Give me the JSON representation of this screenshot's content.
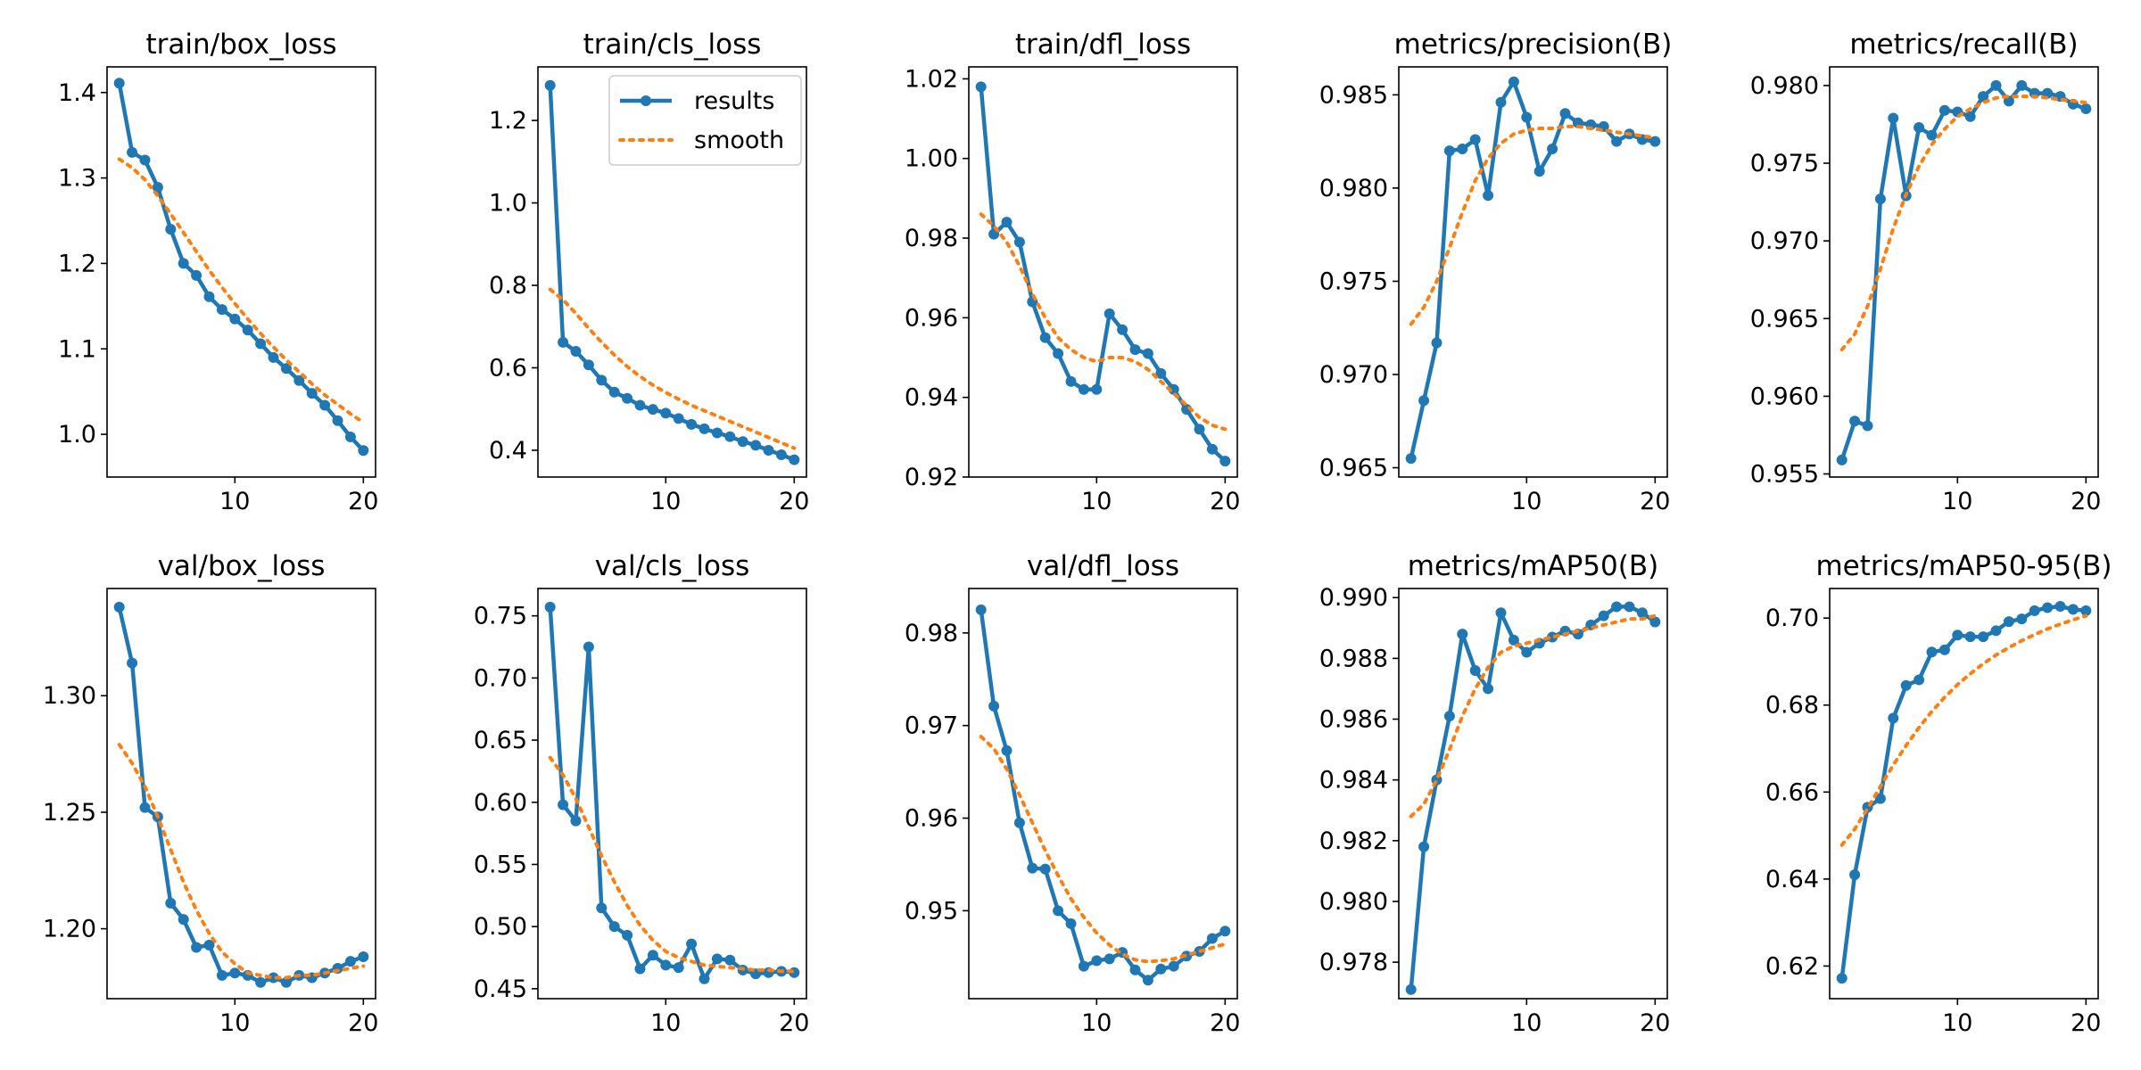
{
  "legend": {
    "results_label": "results",
    "smooth_label": "smooth"
  },
  "colors": {
    "results": "#1f77b4",
    "smooth": "#ff7f0e",
    "axes": "#000000"
  },
  "chart_data": [
    {
      "type": "line",
      "title": "train/box_loss",
      "xlim": [
        0.05,
        20.95
      ],
      "ylim": [
        0.95,
        1.43
      ],
      "xticks": [
        {
          "v": 10,
          "label": "10"
        },
        {
          "v": 20,
          "label": "20"
        }
      ],
      "yticks": [
        {
          "v": 1.0,
          "label": "1.0"
        },
        {
          "v": 1.1,
          "label": "1.1"
        },
        {
          "v": 1.2,
          "label": "1.2"
        },
        {
          "v": 1.3,
          "label": "1.3"
        },
        {
          "v": 1.4,
          "label": "1.4"
        }
      ],
      "x": [
        1,
        2,
        3,
        4,
        5,
        6,
        7,
        8,
        9,
        10,
        11,
        12,
        13,
        14,
        15,
        16,
        17,
        18,
        19,
        20
      ],
      "series": [
        {
          "name": "results",
          "values": [
            1.411,
            1.33,
            1.321,
            1.289,
            1.24,
            1.2,
            1.186,
            1.161,
            1.146,
            1.135,
            1.122,
            1.106,
            1.09,
            1.077,
            1.063,
            1.048,
            1.034,
            1.016,
            0.997,
            0.981
          ]
        },
        {
          "name": "smooth",
          "values": [
            1.322,
            1.312,
            1.298,
            1.279,
            1.258,
            1.236,
            1.214,
            1.192,
            1.172,
            1.153,
            1.135,
            1.118,
            1.102,
            1.087,
            1.073,
            1.059,
            1.046,
            1.035,
            1.024,
            1.014
          ]
        }
      ]
    },
    {
      "type": "line",
      "title": "train/cls_loss",
      "xlim": [
        0.05,
        20.95
      ],
      "ylim": [
        0.335,
        1.33
      ],
      "xticks": [
        {
          "v": 10,
          "label": "10"
        },
        {
          "v": 20,
          "label": "20"
        }
      ],
      "yticks": [
        {
          "v": 0.4,
          "label": "0.4"
        },
        {
          "v": 0.6,
          "label": "0.6"
        },
        {
          "v": 0.8,
          "label": "0.8"
        },
        {
          "v": 1.0,
          "label": "1.0"
        },
        {
          "v": 1.2,
          "label": "1.2"
        }
      ],
      "x": [
        1,
        2,
        3,
        4,
        5,
        6,
        7,
        8,
        9,
        10,
        11,
        12,
        13,
        14,
        15,
        16,
        17,
        18,
        19,
        20
      ],
      "series": [
        {
          "name": "results",
          "values": [
            1.285,
            0.662,
            0.64,
            0.607,
            0.57,
            0.541,
            0.526,
            0.509,
            0.499,
            0.49,
            0.477,
            0.463,
            0.452,
            0.442,
            0.433,
            0.421,
            0.412,
            0.4,
            0.389,
            0.377
          ]
        },
        {
          "name": "smooth",
          "values": [
            0.79,
            0.765,
            0.732,
            0.696,
            0.662,
            0.631,
            0.603,
            0.579,
            0.558,
            0.54,
            0.524,
            0.509,
            0.496,
            0.483,
            0.47,
            0.457,
            0.444,
            0.431,
            0.418,
            0.405
          ]
        }
      ]
    },
    {
      "type": "line",
      "title": "train/dfl_loss",
      "xlim": [
        0.05,
        20.95
      ],
      "ylim": [
        0.92,
        1.023
      ],
      "xticks": [
        {
          "v": 10,
          "label": "10"
        },
        {
          "v": 20,
          "label": "20"
        }
      ],
      "yticks": [
        {
          "v": 0.92,
          "label": "0.92"
        },
        {
          "v": 0.94,
          "label": "0.94"
        },
        {
          "v": 0.96,
          "label": "0.96"
        },
        {
          "v": 0.98,
          "label": "0.98"
        },
        {
          "v": 1.0,
          "label": "1.00"
        },
        {
          "v": 1.02,
          "label": "1.02"
        }
      ],
      "x": [
        1,
        2,
        3,
        4,
        5,
        6,
        7,
        8,
        9,
        10,
        11,
        12,
        13,
        14,
        15,
        16,
        17,
        18,
        19,
        20
      ],
      "series": [
        {
          "name": "results",
          "values": [
            1.018,
            0.981,
            0.984,
            0.979,
            0.964,
            0.955,
            0.951,
            0.944,
            0.942,
            0.942,
            0.961,
            0.957,
            0.952,
            0.951,
            0.946,
            0.942,
            0.937,
            0.932,
            0.927,
            0.924
          ]
        },
        {
          "name": "smooth",
          "values": [
            0.986,
            0.983,
            0.979,
            0.973,
            0.966,
            0.96,
            0.955,
            0.952,
            0.95,
            0.949,
            0.95,
            0.95,
            0.949,
            0.947,
            0.944,
            0.941,
            0.938,
            0.935,
            0.933,
            0.932
          ]
        }
      ]
    },
    {
      "type": "line",
      "title": "metrics/precision(B)",
      "xlim": [
        0.05,
        20.95
      ],
      "ylim": [
        0.9645,
        0.9865
      ],
      "xticks": [
        {
          "v": 10,
          "label": "10"
        },
        {
          "v": 20,
          "label": "20"
        }
      ],
      "yticks": [
        {
          "v": 0.965,
          "label": "0.965"
        },
        {
          "v": 0.97,
          "label": "0.970"
        },
        {
          "v": 0.975,
          "label": "0.975"
        },
        {
          "v": 0.98,
          "label": "0.980"
        },
        {
          "v": 0.985,
          "label": "0.985"
        }
      ],
      "x": [
        1,
        2,
        3,
        4,
        5,
        6,
        7,
        8,
        9,
        10,
        11,
        12,
        13,
        14,
        15,
        16,
        17,
        18,
        19,
        20
      ],
      "series": [
        {
          "name": "results",
          "values": [
            0.9655,
            0.9686,
            0.9717,
            0.982,
            0.9821,
            0.9826,
            0.9796,
            0.9846,
            0.9857,
            0.9838,
            0.9809,
            0.9821,
            0.984,
            0.9835,
            0.9834,
            0.9833,
            0.9825,
            0.9829,
            0.9826,
            0.9825
          ]
        },
        {
          "name": "smooth",
          "values": [
            0.9727,
            0.9736,
            0.975,
            0.9768,
            0.9787,
            0.9804,
            0.9816,
            0.9824,
            0.9829,
            0.9831,
            0.9832,
            0.9832,
            0.9833,
            0.9833,
            0.9832,
            0.9831,
            0.983,
            0.9829,
            0.9828,
            0.9827
          ]
        }
      ]
    },
    {
      "type": "line",
      "title": "metrics/recall(B)",
      "xlim": [
        0.05,
        20.95
      ],
      "ylim": [
        0.9548,
        0.9812
      ],
      "xticks": [
        {
          "v": 10,
          "label": "10"
        },
        {
          "v": 20,
          "label": "20"
        }
      ],
      "yticks": [
        {
          "v": 0.955,
          "label": "0.955"
        },
        {
          "v": 0.96,
          "label": "0.960"
        },
        {
          "v": 0.965,
          "label": "0.965"
        },
        {
          "v": 0.97,
          "label": "0.970"
        },
        {
          "v": 0.975,
          "label": "0.975"
        },
        {
          "v": 0.98,
          "label": "0.980"
        }
      ],
      "x": [
        1,
        2,
        3,
        4,
        5,
        6,
        7,
        8,
        9,
        10,
        11,
        12,
        13,
        14,
        15,
        16,
        17,
        18,
        19,
        20
      ],
      "series": [
        {
          "name": "results",
          "values": [
            0.9559,
            0.9584,
            0.9581,
            0.9727,
            0.9779,
            0.9729,
            0.9773,
            0.9768,
            0.9784,
            0.9783,
            0.978,
            0.9793,
            0.98,
            0.979,
            0.98,
            0.9795,
            0.9795,
            0.9793,
            0.9788,
            0.9785
          ]
        },
        {
          "name": "smooth",
          "values": [
            0.963,
            0.964,
            0.9658,
            0.9682,
            0.9708,
            0.973,
            0.9748,
            0.9762,
            0.9772,
            0.978,
            0.9785,
            0.9789,
            0.9792,
            0.9793,
            0.9793,
            0.9793,
            0.9792,
            0.9791,
            0.979,
            0.9789
          ]
        }
      ]
    },
    {
      "type": "line",
      "title": "val/box_loss",
      "xlim": [
        0.05,
        20.95
      ],
      "ylim": [
        1.17,
        1.346
      ],
      "xticks": [
        {
          "v": 10,
          "label": "10"
        },
        {
          "v": 20,
          "label": "20"
        }
      ],
      "yticks": [
        {
          "v": 1.2,
          "label": "1.20"
        },
        {
          "v": 1.25,
          "label": "1.25"
        },
        {
          "v": 1.3,
          "label": "1.30"
        }
      ],
      "x": [
        1,
        2,
        3,
        4,
        5,
        6,
        7,
        8,
        9,
        10,
        11,
        12,
        13,
        14,
        15,
        16,
        17,
        18,
        19,
        20
      ],
      "series": [
        {
          "name": "results",
          "values": [
            1.338,
            1.314,
            1.252,
            1.248,
            1.211,
            1.204,
            1.192,
            1.193,
            1.18,
            1.181,
            1.18,
            1.177,
            1.179,
            1.177,
            1.18,
            1.179,
            1.181,
            1.183,
            1.186,
            1.188
          ]
        },
        {
          "name": "smooth",
          "values": [
            1.279,
            1.271,
            1.261,
            1.248,
            1.234,
            1.22,
            1.208,
            1.198,
            1.19,
            1.185,
            1.181,
            1.18,
            1.179,
            1.179,
            1.18,
            1.18,
            1.181,
            1.182,
            1.183,
            1.184
          ]
        }
      ]
    },
    {
      "type": "line",
      "title": "val/cls_loss",
      "xlim": [
        0.05,
        20.95
      ],
      "ylim": [
        0.442,
        0.772
      ],
      "xticks": [
        {
          "v": 10,
          "label": "10"
        },
        {
          "v": 20,
          "label": "20"
        }
      ],
      "yticks": [
        {
          "v": 0.45,
          "label": "0.45"
        },
        {
          "v": 0.5,
          "label": "0.50"
        },
        {
          "v": 0.55,
          "label": "0.55"
        },
        {
          "v": 0.6,
          "label": "0.60"
        },
        {
          "v": 0.65,
          "label": "0.65"
        },
        {
          "v": 0.7,
          "label": "0.70"
        },
        {
          "v": 0.75,
          "label": "0.75"
        }
      ],
      "x": [
        1,
        2,
        3,
        4,
        5,
        6,
        7,
        8,
        9,
        10,
        11,
        12,
        13,
        14,
        15,
        16,
        17,
        18,
        19,
        20
      ],
      "series": [
        {
          "name": "results",
          "values": [
            0.757,
            0.598,
            0.585,
            0.725,
            0.515,
            0.5,
            0.493,
            0.466,
            0.477,
            0.469,
            0.467,
            0.486,
            0.458,
            0.474,
            0.473,
            0.465,
            0.462,
            0.463,
            0.464,
            0.463
          ]
        },
        {
          "name": "smooth",
          "values": [
            0.636,
            0.622,
            0.603,
            0.58,
            0.557,
            0.536,
            0.517,
            0.501,
            0.489,
            0.48,
            0.475,
            0.472,
            0.469,
            0.468,
            0.467,
            0.466,
            0.465,
            0.465,
            0.464,
            0.464
          ]
        }
      ]
    },
    {
      "type": "line",
      "title": "val/dfl_loss",
      "xlim": [
        0.05,
        20.95
      ],
      "ylim": [
        0.9405,
        0.9848
      ],
      "xticks": [
        {
          "v": 10,
          "label": "10"
        },
        {
          "v": 20,
          "label": "20"
        }
      ],
      "yticks": [
        {
          "v": 0.95,
          "label": "0.95"
        },
        {
          "v": 0.96,
          "label": "0.96"
        },
        {
          "v": 0.97,
          "label": "0.97"
        },
        {
          "v": 0.98,
          "label": "0.98"
        }
      ],
      "x": [
        1,
        2,
        3,
        4,
        5,
        6,
        7,
        8,
        9,
        10,
        11,
        12,
        13,
        14,
        15,
        16,
        17,
        18,
        19,
        20
      ],
      "series": [
        {
          "name": "results",
          "values": [
            0.9825,
            0.9721,
            0.9673,
            0.9595,
            0.9546,
            0.9545,
            0.95,
            0.9486,
            0.944,
            0.9446,
            0.9448,
            0.9455,
            0.9436,
            0.9425,
            0.9437,
            0.944,
            0.9451,
            0.9456,
            0.947,
            0.9478
          ]
        },
        {
          "name": "smooth",
          "values": [
            0.9688,
            0.9675,
            0.9653,
            0.9625,
            0.9595,
            0.9565,
            0.9538,
            0.9513,
            0.9493,
            0.9476,
            0.9463,
            0.9453,
            0.9447,
            0.9445,
            0.9446,
            0.9448,
            0.9452,
            0.9456,
            0.946,
            0.9464
          ]
        }
      ]
    },
    {
      "type": "line",
      "title": "metrics/mAP50(B)",
      "xlim": [
        0.05,
        20.95
      ],
      "ylim": [
        0.9768,
        0.9903
      ],
      "xticks": [
        {
          "v": 10,
          "label": "10"
        },
        {
          "v": 20,
          "label": "20"
        }
      ],
      "yticks": [
        {
          "v": 0.978,
          "label": "0.978"
        },
        {
          "v": 0.98,
          "label": "0.980"
        },
        {
          "v": 0.982,
          "label": "0.982"
        },
        {
          "v": 0.984,
          "label": "0.984"
        },
        {
          "v": 0.986,
          "label": "0.986"
        },
        {
          "v": 0.988,
          "label": "0.988"
        },
        {
          "v": 0.99,
          "label": "0.990"
        }
      ],
      "x": [
        1,
        2,
        3,
        4,
        5,
        6,
        7,
        8,
        9,
        10,
        11,
        12,
        13,
        14,
        15,
        16,
        17,
        18,
        19,
        20
      ],
      "series": [
        {
          "name": "results",
          "values": [
            0.9771,
            0.9818,
            0.984,
            0.9861,
            0.9888,
            0.9876,
            0.987,
            0.9895,
            0.9886,
            0.9882,
            0.9885,
            0.9887,
            0.9889,
            0.9888,
            0.9891,
            0.9894,
            0.9897,
            0.9897,
            0.9895,
            0.9892
          ]
        },
        {
          "name": "smooth",
          "values": [
            0.9828,
            0.9832,
            0.984,
            0.985,
            0.9861,
            0.987,
            0.9877,
            0.9882,
            0.9884,
            0.9885,
            0.9886,
            0.9887,
            0.9888,
            0.9889,
            0.989,
            0.9891,
            0.9892,
            0.9893,
            0.9893,
            0.9894
          ]
        }
      ]
    },
    {
      "type": "line",
      "title": "metrics/mAP50-95(B)",
      "xlim": [
        0.05,
        20.95
      ],
      "ylim": [
        0.6125,
        0.7068
      ],
      "xticks": [
        {
          "v": 10,
          "label": "10"
        },
        {
          "v": 20,
          "label": "20"
        }
      ],
      "yticks": [
        {
          "v": 0.62,
          "label": "0.62"
        },
        {
          "v": 0.64,
          "label": "0.64"
        },
        {
          "v": 0.66,
          "label": "0.66"
        },
        {
          "v": 0.68,
          "label": "0.68"
        },
        {
          "v": 0.7,
          "label": "0.70"
        }
      ],
      "x": [
        1,
        2,
        3,
        4,
        5,
        6,
        7,
        8,
        9,
        10,
        11,
        12,
        13,
        14,
        15,
        16,
        17,
        18,
        19,
        20
      ],
      "series": [
        {
          "name": "results",
          "values": [
            0.6172,
            0.641,
            0.6565,
            0.6585,
            0.677,
            0.6845,
            0.6858,
            0.6922,
            0.6927,
            0.6961,
            0.6957,
            0.6957,
            0.6971,
            0.6992,
            0.6998,
            0.7017,
            0.7024,
            0.7027,
            0.702,
            0.7017
          ]
        },
        {
          "name": "smooth",
          "values": [
            0.6478,
            0.6515,
            0.6562,
            0.6613,
            0.6662,
            0.6707,
            0.6748,
            0.6785,
            0.6818,
            0.6847,
            0.6872,
            0.6895,
            0.6915,
            0.6932,
            0.6948,
            0.6962,
            0.6975,
            0.6986,
            0.6996,
            0.7005
          ]
        }
      ]
    }
  ]
}
